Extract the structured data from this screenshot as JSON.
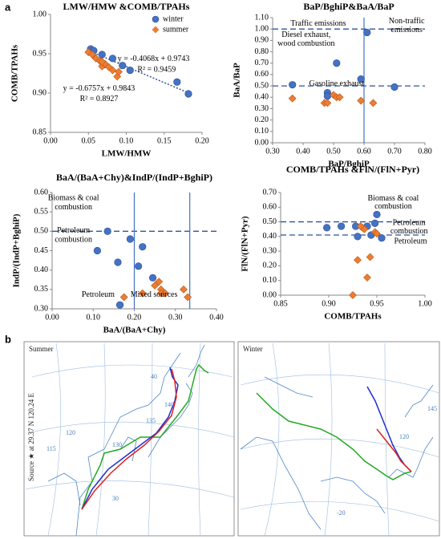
{
  "panel_a": "a",
  "chart_data": [
    {
      "type": "scatter",
      "title": "LMW/HMW &COMB/TPAHs",
      "x_label": "LMW/HMW",
      "y_label": "COMB/TPAHs",
      "xlim": [
        0,
        0.2
      ],
      "ylim": [
        0.85,
        1.0
      ],
      "xticks": [
        {
          "value": 0,
          "label": "0.00"
        },
        {
          "value": 0.05,
          "label": "0.05"
        },
        {
          "value": 0.1,
          "label": "0.10"
        },
        {
          "value": 0.15,
          "label": "0.15"
        },
        {
          "value": 0.2,
          "label": "0.20"
        }
      ],
      "yticks": [
        {
          "value": 0.85,
          "label": "0.85"
        },
        {
          "value": 0.9,
          "label": "0.90"
        },
        0.95,
        {
          "value": 1.0,
          "label": "1.00"
        }
      ],
      "legend": "upper right",
      "series": [
        {
          "name": "winter",
          "color": "#4472c4",
          "marker": "circle",
          "x": [
            0.053,
            0.057,
            0.068,
            0.082,
            0.07,
            0.095,
            0.105,
            0.167,
            0.182
          ],
          "values": [
            0.956,
            0.954,
            0.949,
            0.944,
            0.936,
            0.935,
            0.929,
            0.914,
            0.899
          ]
        },
        {
          "name": "summer",
          "color": "#ed7d31",
          "marker": "diamond",
          "x": [
            0.05,
            0.055,
            0.06,
            0.065,
            0.068,
            0.072,
            0.077,
            0.082,
            0.088,
            0.09,
            0.068
          ],
          "values": [
            0.952,
            0.949,
            0.944,
            0.941,
            0.934,
            0.937,
            0.933,
            0.929,
            0.921,
            0.927,
            0.94
          ]
        }
      ],
      "trendline": {
        "slope": -0.4068,
        "intercept": 0.9743,
        "color": "#2f5597"
      },
      "annotations": [
        "y = -0.4068x + 0.9743",
        "R² = 0.9459",
        "y = -0.6757x + 0.9843",
        "R² = 0.8927"
      ]
    },
    {
      "type": "scatter",
      "title": "BaP/BghiP&BaA/BaP",
      "x_label": "BaP/BghiP",
      "y_label": "BaA/BaP",
      "xlim": [
        0.3,
        0.8
      ],
      "ylim": [
        0,
        1.1
      ],
      "xticks": [
        {
          "value": 0.3,
          "label": "0.30"
        },
        {
          "value": 0.4,
          "label": "0.40"
        },
        {
          "value": 0.5,
          "label": "0.50"
        },
        {
          "value": 0.6,
          "label": "0.60"
        },
        {
          "value": 0.7,
          "label": "0.70"
        },
        {
          "value": 0.8,
          "label": "0.80"
        }
      ],
      "yticks": [
        {
          "value": 0,
          "label": "0.00"
        },
        {
          "value": 0.1,
          "label": "0.10"
        },
        {
          "value": 0.2,
          "label": "0.20"
        },
        {
          "value": 0.3,
          "label": "0.30"
        },
        {
          "value": 0.4,
          "label": "0.40"
        },
        {
          "value": 0.5,
          "label": "0.50"
        },
        {
          "value": 0.6,
          "label": "0.60"
        },
        {
          "value": 0.7,
          "label": "0.70"
        },
        {
          "value": 0.8,
          "label": "0.80"
        },
        {
          "value": 0.9,
          "label": "0.90"
        },
        {
          "value": 1.0,
          "label": "1.00"
        },
        {
          "value": 1.1,
          "label": "1.10"
        }
      ],
      "hlines": [
        1.0,
        0.5
      ],
      "vlines": [
        0.6
      ],
      "series": [
        {
          "name": "winter",
          "color": "#4472c4",
          "marker": "circle",
          "x": [
            0.365,
            0.48,
            0.48,
            0.51,
            0.59,
            0.61,
            0.7
          ],
          "values": [
            0.51,
            0.44,
            0.41,
            0.7,
            0.56,
            0.97,
            0.49
          ]
        },
        {
          "name": "summer",
          "color": "#ed7d31",
          "marker": "diamond",
          "x": [
            0.365,
            0.47,
            0.48,
            0.5,
            0.51,
            0.52,
            0.59,
            0.63
          ],
          "values": [
            0.39,
            0.35,
            0.35,
            0.42,
            0.4,
            0.4,
            0.37,
            0.35
          ]
        }
      ],
      "annotations": [
        "Traffic emissions",
        "Non-traffic",
        "emissions",
        "Diesel exhaust,",
        "wood combustion",
        "Gasoline exhaust"
      ]
    },
    {
      "type": "scatter",
      "title": "BaA/(BaA+Chy)&IndP/(IndP+BghiP)",
      "x_label": "BaA/(BaA+Chy)",
      "y_label": "IndP/(IndP+BghiP)",
      "xlim": [
        0,
        0.4
      ],
      "ylim": [
        0.3,
        0.6
      ],
      "xticks": [
        {
          "value": 0,
          "label": "0.00"
        },
        {
          "value": 0.1,
          "label": "0.10"
        },
        {
          "value": 0.2,
          "label": "0.20"
        },
        {
          "value": 0.3,
          "label": "0.30"
        },
        {
          "value": 0.4,
          "label": "0.40"
        }
      ],
      "yticks": [
        {
          "value": 0.3,
          "label": "0.30"
        },
        0.35,
        {
          "value": 0.4,
          "label": "0.40"
        },
        0.45,
        {
          "value": 0.5,
          "label": "0.50"
        },
        0.55,
        {
          "value": 0.6,
          "label": "0.60"
        }
      ],
      "hlines": [
        0.5
      ],
      "vlines": [
        0.2,
        0.335
      ],
      "series": [
        {
          "name": "winter",
          "color": "#4472c4",
          "marker": "circle",
          "x": [
            0.11,
            0.135,
            0.16,
            0.165,
            0.19,
            0.21,
            0.22,
            0.245
          ],
          "values": [
            0.45,
            0.5,
            0.42,
            0.31,
            0.48,
            0.41,
            0.46,
            0.38
          ]
        },
        {
          "name": "summer",
          "color": "#ed7d31",
          "marker": "diamond",
          "x": [
            0.175,
            0.22,
            0.25,
            0.26,
            0.265,
            0.265,
            0.275,
            0.32,
            0.33
          ],
          "values": [
            0.33,
            0.34,
            0.36,
            0.37,
            0.35,
            0.34,
            0.34,
            0.35,
            0.33
          ]
        }
      ],
      "annotations": [
        "Biomass & coal",
        "combustion",
        "Petroleum",
        "combustion",
        "Petroleum",
        "Mixed sources"
      ]
    },
    {
      "type": "scatter",
      "title": "COMB/TPAHs &FlN/(FlN+Pyr)",
      "x_label": "COMB/TPAHs",
      "y_label": "FlN/(FlN+Pyr)",
      "xlim": [
        0.85,
        1.0
      ],
      "ylim": [
        0,
        0.7
      ],
      "xticks": [
        {
          "value": 0.85,
          "label": "0.85"
        },
        {
          "value": 0.9,
          "label": "0.90"
        },
        0.95,
        {
          "value": 1.0,
          "label": "1.00"
        }
      ],
      "yticks": [
        {
          "value": 0,
          "label": "0.00"
        },
        {
          "value": 0.1,
          "label": "0.10"
        },
        {
          "value": 0.2,
          "label": "0.20"
        },
        {
          "value": 0.3,
          "label": "0.30"
        },
        {
          "value": 0.4,
          "label": "0.40"
        },
        {
          "value": 0.5,
          "label": "0.50"
        },
        {
          "value": 0.6,
          "label": "0.60"
        },
        {
          "value": 0.7,
          "label": "0.70"
        }
      ],
      "hlines": [
        0.5,
        0.41
      ],
      "vlines": [],
      "series": [
        {
          "name": "winter",
          "color": "#4472c4",
          "marker": "circle",
          "x": [
            0.898,
            0.913,
            0.928,
            0.93,
            0.944,
            0.948,
            0.95,
            0.955,
            0.94
          ],
          "values": [
            0.46,
            0.47,
            0.47,
            0.4,
            0.41,
            0.49,
            0.55,
            0.39,
            0.47
          ]
        },
        {
          "name": "summer",
          "color": "#ed7d31",
          "marker": "diamond",
          "x": [
            0.925,
            0.93,
            0.935,
            0.937,
            0.94,
            0.943,
            0.948,
            0.95,
            0.933
          ],
          "values": [
            0,
            0.24,
            0.46,
            0.45,
            0.12,
            0.26,
            0.43,
            0.42,
            0.47
          ]
        }
      ],
      "annotations": [
        "Biomass & coal",
        "combustion",
        "Petroleum",
        "combustion",
        "Petroleum"
      ]
    }
  ],
  "maps": {
    "panel_label": "b",
    "summer": {
      "title": "Summer",
      "source": "Source ★  at  29.37 N  120.24 E",
      "grid_labels": [
        "115",
        "120",
        "130",
        "135",
        "140",
        "40",
        "30"
      ]
    },
    "winter": {
      "title": "Winter",
      "grid_labels": [
        "145",
        "120",
        "-20"
      ]
    }
  }
}
